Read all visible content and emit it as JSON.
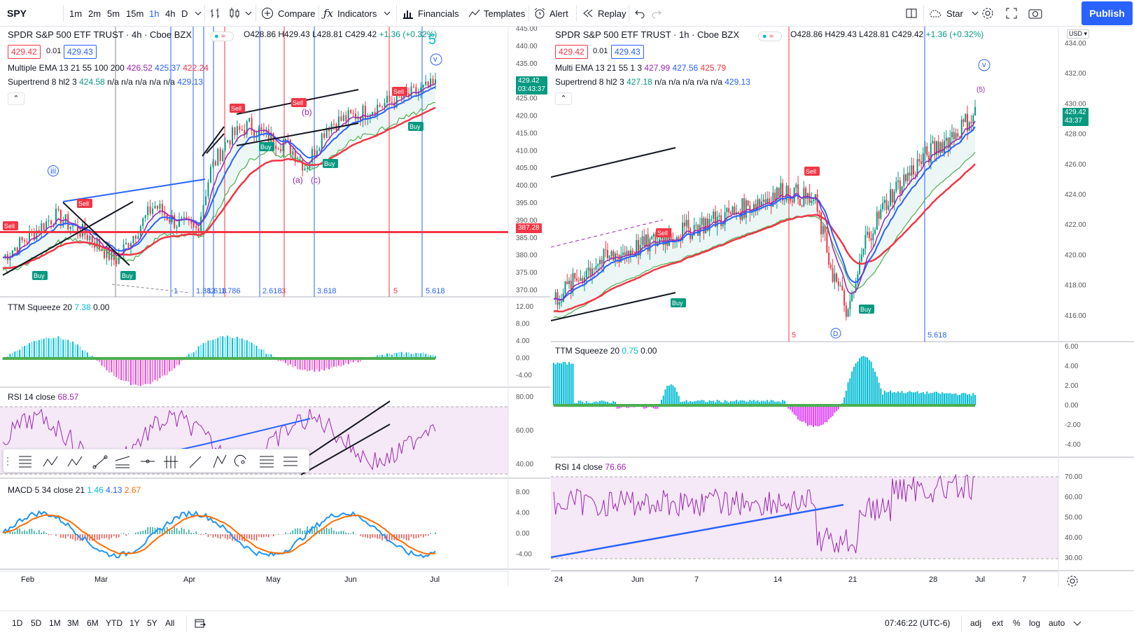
{
  "toolbar": {
    "symbol": "SPY",
    "intervals": [
      "1m",
      "2m",
      "5m",
      "15m",
      "1h",
      "4h",
      "D"
    ],
    "compare": "Compare",
    "indicators": "Indicators",
    "financials": "Financials",
    "templates": "Templates",
    "alert": "Alert",
    "replay": "Replay",
    "star": "Star",
    "publish": "Publish"
  },
  "left": {
    "title": "SPDR S&P 500 ETF TRUST · 4h · Cboe BZX",
    "ohlc": {
      "o": "O428.86",
      "h": "H429.43",
      "l": "L428.81",
      "c": "C429.42",
      "chg": "+1.36 (+0.32%)"
    },
    "bid": "429.42",
    "spread": "0.01",
    "ask": "429.43",
    "ema": {
      "name": "Multiple EMA 13 21 55 100 200",
      "v1": "426.52",
      "v2": "425.37",
      "v3": "422.24"
    },
    "st": {
      "name": "Supertrend 8 hl2 3",
      "v1": "424.58",
      "na": "n/a n/a n/a n/a n/a",
      "v2": "429.13"
    },
    "price_scale": [
      "445.00",
      "440.00",
      "435.00",
      "430.00",
      "425.00",
      "420.00",
      "415.00",
      "410.00",
      "405.00",
      "400.00",
      "395.00",
      "390.00",
      "385.00",
      "380.00",
      "375.00",
      "370.00"
    ],
    "last_price": "429.42",
    "countdown": "03:43:37",
    "hline_price": "387.28",
    "fib_labels": [
      "1",
      "1.382",
      "1.618",
      "1.786",
      "2.618",
      "3",
      "3.618",
      "5",
      "5.618"
    ],
    "wave_labels": {
      "five_big": "5",
      "v": "v",
      "iii": "iii",
      "a": "(a)",
      "c": "(c)",
      "b": "(b)"
    },
    "ttm": {
      "name": "TTM Squeeze 20",
      "v1": "7.38",
      "v2": "0.00",
      "scale": [
        "12.00",
        "8.00",
        "4.00",
        "0.00",
        "-4.00"
      ]
    },
    "rsi": {
      "name": "RSI 14 close",
      "v1": "68.57",
      "scale": [
        "80.00",
        "60.00",
        "40.00"
      ]
    },
    "macd": {
      "name": "MACD 5 34 close 21",
      "v1": "1.46",
      "v2": "4.13",
      "v3": "2.67",
      "scale": [
        "8.00",
        "4.00",
        "0.00",
        "-4.00"
      ]
    },
    "time_axis": [
      "Feb",
      "Mar",
      "Apr",
      "May",
      "Jun",
      "Jul"
    ],
    "signals": {
      "sell": "Sell",
      "buy": "Buy"
    }
  },
  "right": {
    "title": "SPDR S&P 500 ETF TRUST · 1h · Cboe BZX",
    "ohlc": {
      "o": "O428.86",
      "h": "H429.43",
      "l": "L428.81",
      "c": "C429.42",
      "chg": "+1.36 (+0.32%)"
    },
    "bid": "429.42",
    "spread": "0.01",
    "ask": "429.43",
    "currency": "USD",
    "ema": {
      "name": "Multi EMA 13 21 55 1 3",
      "v1": "427.99",
      "v2": "427.56",
      "v3": "425.79"
    },
    "st": {
      "name": "Supertrend 8 hl2 3",
      "v1": "427.18",
      "na": "n/a n/a n/a n/a n/a",
      "v2": "429.13"
    },
    "price_scale": [
      "434.00",
      "432.00",
      "430.00",
      "428.00",
      "426.00",
      "424.00",
      "422.00",
      "420.00",
      "418.00",
      "416.00"
    ],
    "last_price": "429.42",
    "countdown": "43:37",
    "fib_labels": [
      "5",
      "5.618"
    ],
    "ttm": {
      "name": "TTM Squeeze 20",
      "v1": "0.75",
      "v2": "0.00",
      "scale": [
        "6.00",
        "4.00",
        "2.00",
        "0.00",
        "-2.00",
        "-4.00"
      ]
    },
    "rsi": {
      "name": "RSI 14 close",
      "v1": "76.66",
      "scale": [
        "70.00",
        "60.00",
        "50.00",
        "40.00",
        "30.00"
      ]
    },
    "time_axis": [
      "24",
      "Jun",
      "7",
      "14",
      "21",
      "28",
      "Jul",
      "7"
    ],
    "wave_labels": {
      "v": "v",
      "five": "(5)",
      "d": "D"
    }
  },
  "bottom": {
    "ranges": [
      "1D",
      "5D",
      "1M",
      "3M",
      "6M",
      "YTD",
      "1Y",
      "5Y",
      "All"
    ],
    "clock": "07:46:22 (UTC-6)",
    "opts": [
      "adj",
      "ext",
      "%",
      "log",
      "auto"
    ]
  },
  "colors": {
    "accent": "#2962ff",
    "red": "#f23645",
    "green": "#089981",
    "purple": "#9c27b0",
    "cyan": "#00bcd4"
  }
}
